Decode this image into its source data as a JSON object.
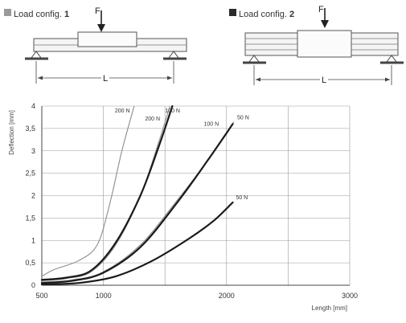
{
  "load_configs": [
    {
      "label": "Load config. ",
      "number": "1",
      "swatch_color": "#9a9a9a",
      "force": "F",
      "span": "L"
    },
    {
      "label": "Load config. ",
      "number": "2",
      "swatch_color": "#2a2a2a",
      "force": "F",
      "span": "L"
    }
  ],
  "colors": {
    "grid": "#9a9a9a",
    "axis": "#444444",
    "light_curve": "#8c8c8c",
    "dark_curve": "#1a1a1a"
  },
  "chart_data": {
    "type": "line",
    "xlabel": "Length [mm]",
    "ylabel": "Deflection [mm]",
    "xlim": [
      500,
      3000
    ],
    "ylim": [
      0,
      4
    ],
    "x_ticks": [
      "500",
      "1000",
      "2000",
      "3000"
    ],
    "x_grid": [
      500,
      1000,
      1500,
      2000,
      2500,
      3000
    ],
    "y_ticks": [
      "0",
      "0,5",
      "1",
      "1,5",
      "2",
      "2,5",
      "3",
      "3,5",
      "4"
    ],
    "y_tick_values": [
      0,
      0.5,
      1,
      1.5,
      2,
      2.5,
      3,
      3.5,
      4
    ],
    "grid": true,
    "series": [
      {
        "name": "200 N",
        "config": 1,
        "label": "200 N",
        "points": [
          [
            500,
            0.2
          ],
          [
            600,
            0.35
          ],
          [
            800,
            0.55
          ],
          [
            950,
            0.9
          ],
          [
            1050,
            1.8
          ],
          [
            1150,
            3.0
          ],
          [
            1250,
            4.0
          ]
        ]
      },
      {
        "name": "100 N",
        "config": 1,
        "label": "100 N",
        "points": [
          [
            500,
            0.1
          ],
          [
            700,
            0.15
          ],
          [
            900,
            0.3
          ],
          [
            1100,
            0.9
          ],
          [
            1300,
            2.0
          ],
          [
            1450,
            3.2
          ],
          [
            1540,
            4.0
          ]
        ]
      },
      {
        "name": "50 N",
        "config": 1,
        "label": "50 N",
        "points": [
          [
            500,
            0.07
          ],
          [
            750,
            0.12
          ],
          [
            1000,
            0.3
          ],
          [
            1300,
            0.9
          ],
          [
            1600,
            1.9
          ],
          [
            1850,
            2.8
          ],
          [
            2060,
            3.65
          ]
        ]
      },
      {
        "name": "200 N",
        "config": 2,
        "label": "200 N",
        "points": [
          [
            500,
            0.12
          ],
          [
            700,
            0.17
          ],
          [
            900,
            0.33
          ],
          [
            1100,
            0.95
          ],
          [
            1300,
            2.0
          ],
          [
            1450,
            3.1
          ],
          [
            1560,
            4.0
          ]
        ]
      },
      {
        "name": "100 N",
        "config": 2,
        "label": "100 N",
        "points": [
          [
            500,
            0.05
          ],
          [
            750,
            0.1
          ],
          [
            1000,
            0.28
          ],
          [
            1300,
            0.85
          ],
          [
            1600,
            1.85
          ],
          [
            1850,
            2.8
          ],
          [
            2050,
            3.6
          ]
        ]
      },
      {
        "name": "50 N",
        "config": 2,
        "label": "50 N",
        "points": [
          [
            500,
            0.02
          ],
          [
            800,
            0.05
          ],
          [
            1100,
            0.2
          ],
          [
            1400,
            0.55
          ],
          [
            1700,
            1.05
          ],
          [
            1900,
            1.45
          ],
          [
            2050,
            1.85
          ]
        ]
      }
    ]
  }
}
